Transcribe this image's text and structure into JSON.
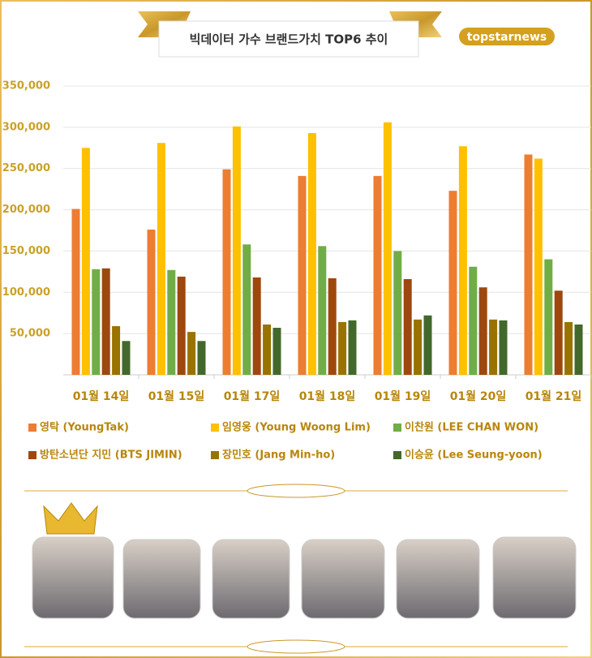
{
  "chart_data": {
    "type": "bar",
    "title": "빅데이터 가수 브랜드가치 TOP6 추이",
    "logo": "topstarnews",
    "categories": [
      "01월 14일",
      "01월 15일",
      "01월 17일",
      "01월 18일",
      "01월 19일",
      "01월 20일",
      "01월 21일"
    ],
    "series": [
      {
        "name": "영탁 (YoungTak)",
        "color": "#ED7D31",
        "values": [
          201000,
          176000,
          249000,
          241000,
          241000,
          223000,
          267000
        ]
      },
      {
        "name": "임영웅 (Young Woong Lim)",
        "color": "#FFC000",
        "values": [
          275000,
          281000,
          301000,
          293000,
          306000,
          277000,
          262000
        ]
      },
      {
        "name": "이찬원 (LEE CHAN WON)",
        "color": "#70AD47",
        "values": [
          128000,
          127000,
          158000,
          156000,
          150000,
          131000,
          140000
        ]
      },
      {
        "name": "방탄소년단 지민 (BTS JIMIN)",
        "color": "#9E480E",
        "values": [
          129000,
          119000,
          118000,
          117000,
          116000,
          106000,
          102000
        ]
      },
      {
        "name": "장민호 (Jang Min-ho)",
        "color": "#997300",
        "values": [
          59000,
          52000,
          61000,
          64000,
          67000,
          67000,
          64000
        ]
      },
      {
        "name": "이승윤 (Lee Seung-yoon)",
        "color": "#43682B",
        "values": [
          41000,
          41000,
          57000,
          66000,
          72000,
          66000,
          61000
        ]
      }
    ],
    "ylim": [
      0,
      350000
    ],
    "yticks": [
      {
        "value": 50000,
        "label": "50,000"
      },
      {
        "value": 100000,
        "label": "100,000"
      },
      {
        "value": 150000,
        "label": "150,000"
      },
      {
        "value": 200000,
        "label": "200,000"
      },
      {
        "value": 250000,
        "label": "250,000"
      },
      {
        "value": 300000,
        "label": "300,000"
      },
      {
        "value": 350000,
        "label": "350,000"
      }
    ],
    "grid": true
  }
}
